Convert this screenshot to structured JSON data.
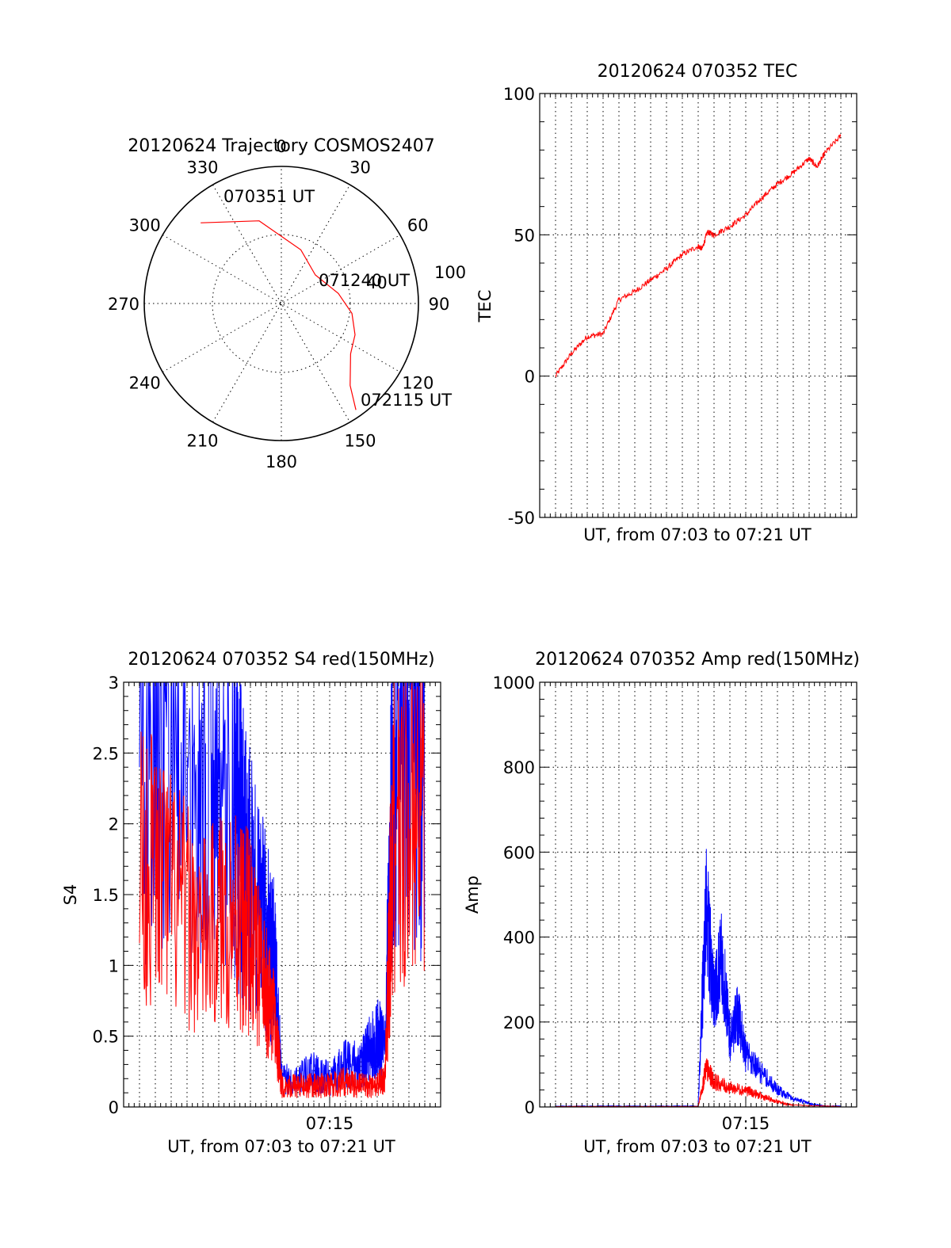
{
  "figure": {
    "colors": {
      "red": "#ff0000",
      "blue": "#0000ff",
      "axis": "#000000",
      "background": "#ffffff"
    }
  },
  "chart_data": [
    {
      "id": "trajectory",
      "type": "polar",
      "title": "20120624 Trajectory COSMOS2407",
      "azimuth_labels": [
        "0",
        "30",
        "60",
        "90",
        "120",
        "150",
        "180",
        "210",
        "240",
        "270",
        "300",
        "330"
      ],
      "radial_label": "100",
      "grid": true,
      "series": [
        {
          "color": "red",
          "points_az_deg_dist": [
            [
              -45,
              144
            ],
            [
              -15,
              108
            ],
            [
              20,
              72
            ],
            [
              50,
              56
            ],
            [
              80,
              73
            ],
            [
              98,
              90
            ],
            [
              113,
              101
            ],
            [
              126,
              108
            ],
            [
              140,
              135
            ],
            [
              145,
              164
            ]
          ]
        }
      ],
      "annotations": [
        {
          "text": "070351 UT",
          "at": "start"
        },
        {
          "text": "071240 UT",
          "at": "middle"
        },
        {
          "text": "40",
          "at": "middle"
        },
        {
          "text": "072115 UT",
          "at": "end"
        }
      ]
    },
    {
      "id": "tec",
      "type": "line",
      "title": "20120624 070352 TEC",
      "xlabel": "UT, from 07:03 to 07:21 UT",
      "ylabel": "TEC",
      "xlim": [
        "07:02",
        "07:22"
      ],
      "ylim": [
        -50,
        100
      ],
      "yticks": [
        "100",
        "50",
        "0",
        "-50"
      ],
      "xticks": [],
      "grid": true,
      "series": [
        {
          "color": "red",
          "x": [
            "07:03",
            "07:04",
            "07:05",
            "07:06",
            "07:07",
            "07:08",
            "07:09",
            "07:10",
            "07:11",
            "07:12",
            "07:12:15",
            "07:12:35",
            "07:13",
            "07:14",
            "07:15",
            "07:16",
            "07:17",
            "07:18",
            "07:19",
            "07:19:30",
            "07:20",
            "07:21"
          ],
          "y": [
            0,
            8,
            14,
            15,
            27,
            30,
            34,
            38,
            43,
            46,
            45,
            51,
            50,
            53,
            57,
            63,
            68,
            72,
            77,
            74,
            79,
            85
          ]
        }
      ]
    },
    {
      "id": "s4",
      "type": "line",
      "title": "20120624 070352 S4 red(150MHz)",
      "xlabel": "UT, from 07:03 to 07:21 UT",
      "ylabel": "S4",
      "xlim": [
        "07:02",
        "07:22"
      ],
      "ylim": [
        0,
        3
      ],
      "yticks": [
        "3",
        "2.5",
        "2",
        "1.5",
        "1",
        "0.5",
        "0"
      ],
      "xticks": [
        {
          "x": "07:15",
          "label": "07:15"
        }
      ],
      "grid": true,
      "series": [
        {
          "color": "blue",
          "x": [
            "07:03",
            "07:05",
            "07:07",
            "07:09",
            "07:09:30",
            "07:10",
            "07:11",
            "07:11:30",
            "07:12",
            "07:13",
            "07:14",
            "07:15",
            "07:16",
            "07:17",
            "07:17:30",
            "07:18",
            "07:18:30",
            "07:19",
            "07:20",
            "07:21"
          ],
          "y": [
            2.4,
            2.6,
            2.5,
            2.2,
            1.8,
            1.6,
            1.2,
            1.0,
            0.2,
            0.2,
            0.25,
            0.2,
            0.3,
            0.3,
            0.4,
            0.5,
            0.4,
            2.5,
            2.6,
            2.4
          ]
        },
        {
          "color": "red",
          "x": [
            "07:03",
            "07:05",
            "07:07",
            "07:09",
            "07:10",
            "07:11",
            "07:11:30",
            "07:12",
            "07:13",
            "07:14",
            "07:15",
            "07:16",
            "07:17",
            "07:18",
            "07:18:30",
            "07:19",
            "07:21"
          ],
          "y": [
            1.8,
            1.5,
            1.2,
            1.4,
            1.2,
            0.8,
            0.6,
            0.15,
            0.15,
            0.15,
            0.15,
            0.18,
            0.15,
            0.15,
            0.2,
            2.0,
            2.2
          ]
        }
      ]
    },
    {
      "id": "amp",
      "type": "line",
      "title": "20120624 070352 Amp red(150MHz)",
      "xlabel": "UT, from 07:03 to 07:21 UT",
      "ylabel": "Amp",
      "xlim": [
        "07:02",
        "07:22"
      ],
      "ylim": [
        0,
        1000
      ],
      "yticks": [
        "1000",
        "800",
        "600",
        "400",
        "200",
        "0"
      ],
      "xticks": [
        {
          "x": "07:15",
          "label": "07:15"
        }
      ],
      "grid": true,
      "series": [
        {
          "color": "blue",
          "x": [
            "07:03",
            "07:12",
            "07:12:30",
            "07:13",
            "07:13:30",
            "07:14",
            "07:14:30",
            "07:15",
            "07:16",
            "07:17",
            "07:18",
            "07:19",
            "07:20",
            "07:21"
          ],
          "y": [
            2,
            2,
            480,
            250,
            350,
            160,
            220,
            120,
            80,
            40,
            20,
            8,
            2,
            2
          ]
        },
        {
          "color": "red",
          "x": [
            "07:03",
            "07:12",
            "07:12:30",
            "07:13",
            "07:14",
            "07:15",
            "07:16",
            "07:17",
            "07:18",
            "07:21"
          ],
          "y": [
            1,
            1,
            90,
            60,
            45,
            40,
            25,
            12,
            4,
            1
          ]
        }
      ]
    }
  ]
}
